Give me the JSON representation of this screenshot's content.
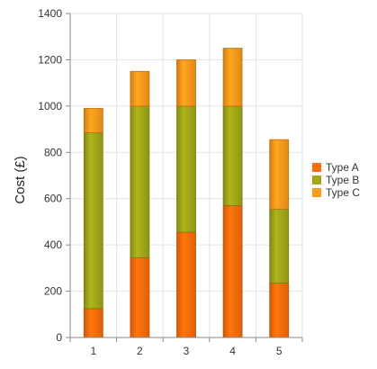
{
  "chart_data": {
    "type": "bar",
    "stacked": true,
    "categories": [
      "1",
      "2",
      "3",
      "4",
      "5"
    ],
    "series": [
      {
        "name": "Type A",
        "values": [
          125,
          345,
          455,
          570,
          235
        ]
      },
      {
        "name": "Type B",
        "values": [
          760,
          655,
          545,
          430,
          320
        ]
      },
      {
        "name": "Type C",
        "values": [
          105,
          150,
          200,
          250,
          300
        ]
      }
    ],
    "xlabel": "",
    "ylabel": "Cost (£)",
    "ylim": [
      0,
      1400
    ],
    "yticks": [
      0,
      200,
      400,
      600,
      800,
      1000,
      1200,
      1400
    ],
    "grid": true,
    "legend_position": "right",
    "colors": {
      "Type A": "#ff6d0a",
      "Type B": "#a2a818",
      "Type C": "#ff9a1c"
    }
  }
}
